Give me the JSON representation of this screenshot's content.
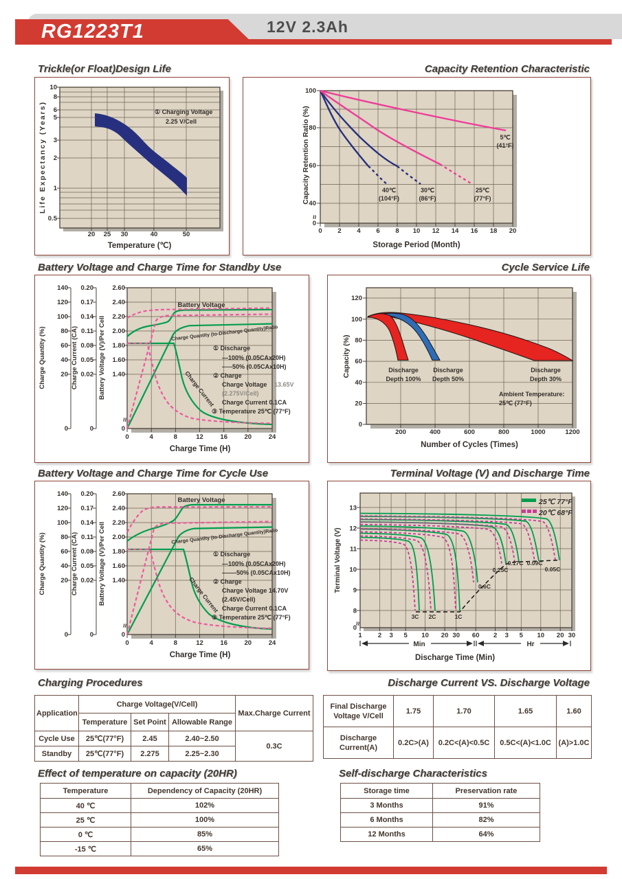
{
  "header": {
    "model": "RG1223T1",
    "rating": "12V  2.3Ah"
  },
  "colors": {
    "accent_red": "#d23b31",
    "header_gray": "#d8d8d8",
    "plot_background": "#ded5c4",
    "navy": "#27307f",
    "pink": "#ee3d98",
    "green": "#009d4e",
    "pink_dashed": "#f0579e",
    "red_fill": "#e62420",
    "blue_fill": "#2f6cb5",
    "magenta": "#c93b95",
    "box_border": "#8d4436"
  },
  "chart_data": [
    {
      "id": "trickle-design-life",
      "type": "area",
      "title": "Trickle(or Float)Design Life",
      "xlabel": "Temperature (℃)",
      "ylabel": "Life Expectancy (Years)",
      "y_scale": "log",
      "x_ticks": [
        "20",
        "25",
        "30",
        "40",
        "50"
      ],
      "y_ticks": [
        "10",
        "8",
        "6",
        "5",
        "3",
        "2",
        "1",
        "0.5"
      ],
      "annotation": [
        "① Charging Voltage",
        "2.25 V/Cell"
      ],
      "band": {
        "temperature_c": [
          21,
          25,
          30,
          35,
          40,
          45,
          50
        ],
        "years_upper": [
          5.5,
          5.1,
          4.1,
          3.0,
          2.2,
          1.6,
          1.25
        ],
        "years_lower": [
          4.0,
          3.8,
          3.0,
          2.15,
          1.55,
          1.1,
          0.85
        ]
      }
    },
    {
      "id": "capacity-retention",
      "type": "line",
      "title": "Capacity Retention  Characteristic",
      "xlabel": "Storage Period (Month)",
      "ylabel": "Capacity Retention Ratio (%)",
      "x_ticks": [
        "0",
        "2",
        "4",
        "6",
        "8",
        "10",
        "12",
        "14",
        "16",
        "18",
        "20"
      ],
      "y_ticks": [
        "100",
        "80",
        "60",
        "40",
        "0"
      ],
      "series": [
        {
          "name": "40℃ (104°F)",
          "label": [
            "40℃",
            "(104°F)"
          ],
          "color": "#27307f",
          "months": [
            0,
            1,
            2,
            3,
            4,
            5,
            6.9
          ],
          "retention_pct": [
            100,
            88,
            79.5,
            72,
            65,
            59.5,
            50
          ],
          "dashed_after_month": 5
        },
        {
          "name": "30℃ (86°F)",
          "label": [
            "30℃",
            "(86°F)"
          ],
          "color": "#27307f",
          "months": [
            0,
            2,
            4,
            6,
            8,
            10.4
          ],
          "retention_pct": [
            100,
            87,
            75.5,
            66.5,
            59.5,
            50
          ],
          "dashed_after_month": 8
        },
        {
          "name": "25℃ (77°F)",
          "label": [
            "25℃",
            "(77°F)"
          ],
          "color": "#ee3d98",
          "months": [
            0,
            3,
            6,
            9,
            12.4,
            15.8
          ],
          "retention_pct": [
            100,
            89,
            79,
            70,
            60.5,
            50
          ],
          "dashed_after_month": 12.4
        },
        {
          "name": "5℃ (41°F)",
          "label": [
            "5℃",
            "(41°F)"
          ],
          "color": "#ee3d98",
          "months": [
            0,
            5,
            10,
            15,
            19.3
          ],
          "retention_pct": [
            100,
            95,
            89,
            83,
            78.5
          ],
          "dashed_after_month": null
        }
      ]
    },
    {
      "id": "standby-charge",
      "type": "line",
      "title": "Battery Voltage and Charge Time for Standby Use",
      "xlabel": "Charge Time (H)",
      "x_ticks": [
        "0",
        "4",
        "8",
        "12",
        "16",
        "20",
        "24"
      ],
      "axes": [
        {
          "label": "Charge Quantity (%)",
          "ticks": [
            "140",
            "120",
            "100",
            "80",
            "60",
            "40",
            "20"
          ],
          "zero": "0"
        },
        {
          "label": "Charge Current (CA)",
          "ticks": [
            "0.20",
            "0.17",
            "0.14",
            "0.11",
            "0.08",
            "0.05",
            "0.02"
          ],
          "zero": "0"
        },
        {
          "label": "Battery Voltage (V)/Per Cell",
          "ticks": [
            "2.60",
            "2.40",
            "2.20",
            "2.00",
            "1.80",
            "1.60",
            "1.40"
          ],
          "zero": "0"
        }
      ],
      "curve_labels": {
        "battery_voltage": "Battery Voltage",
        "charge_quantity": "Charge Quantity (to-Discharge Quantity)Ratio",
        "charge_current": "Charge Current"
      },
      "annotation": [
        "① Discharge",
        "—100% (0.05CAx20H)",
        "-----50% (0.05CAx10H)",
        "② Charge",
        "Charge Voltage",
        "13.65V",
        "(2.275V/Cell)",
        "Charge Current 0.1CA",
        "③ Temperature 25℃ (77°F)"
      ],
      "series": [
        {
          "name": "Battery Voltage 100% discharge",
          "color": "#009d4e",
          "style": "solid",
          "time_h": [
            0,
            2,
            4,
            6,
            7.8,
            9,
            24
          ],
          "v_per_cell": [
            1.92,
            2.07,
            2.11,
            2.14,
            2.26,
            2.28,
            2.29
          ]
        },
        {
          "name": "Battery Voltage 50% discharge",
          "color": "#f0579e",
          "style": "dashed",
          "time_h": [
            0,
            1,
            2,
            4,
            24
          ],
          "v_per_cell": [
            2.17,
            2.22,
            2.25,
            2.27,
            2.3
          ]
        },
        {
          "name": "Charge Quantity 100% discharge",
          "color": "#009d4e",
          "style": "solid",
          "time_h": [
            0,
            4,
            8,
            12,
            24
          ],
          "charge_quantity_pct": [
            0,
            50,
            97,
            101,
            104
          ]
        },
        {
          "name": "Charge Quantity 50% discharge",
          "color": "#f0579e",
          "style": "dashed",
          "time_h": [
            0,
            2,
            4.8,
            10,
            24
          ],
          "charge_quantity_pct": [
            0,
            45,
            107,
            110,
            113
          ]
        },
        {
          "name": "Charge Current 100% discharge",
          "color": "#009d4e",
          "style": "solid",
          "time_h": [
            0,
            7.6,
            9,
            12,
            16,
            24
          ],
          "charge_current_ca": [
            0.1,
            0.1,
            0.06,
            0.03,
            0.012,
            0.004
          ]
        },
        {
          "name": "Charge Current 50% discharge",
          "color": "#f0579e",
          "style": "dashed",
          "time_h": [
            0,
            3.3,
            5,
            7,
            10,
            24
          ],
          "charge_current_ca": [
            0.1,
            0.1,
            0.04,
            0.018,
            0.006,
            0.002
          ]
        }
      ]
    },
    {
      "id": "cycle-service-life",
      "type": "area",
      "title": "Cycle Service Life",
      "xlabel": "Number of Cycles (Times)",
      "ylabel": "Capacity (%)",
      "x_ticks": [
        "200",
        "400",
        "600",
        "800",
        "1000",
        "1200"
      ],
      "y_ticks": [
        "120",
        "100",
        "80",
        "60",
        "40",
        "20",
        "0"
      ],
      "note": [
        "Ambient Temperature:",
        "25℃ (77°F)"
      ],
      "bands": [
        {
          "name": "Discharge Depth 100%",
          "label": [
            "Discharge",
            "Depth 100%"
          ],
          "color": "#e62420",
          "capacity_pct_start": 102,
          "capacity_pct_peak": 106,
          "end_cycles_range": [
            200,
            250
          ],
          "capacity_pct_end": 61
        },
        {
          "name": "Discharge Depth 50%",
          "label": [
            "Discharge",
            "Depth 50%"
          ],
          "color": "#2f6cb5",
          "capacity_pct_start": 102,
          "capacity_pct_peak": 106,
          "end_cycles_range": [
            390,
            470
          ],
          "capacity_pct_end": 61
        },
        {
          "name": "Discharge Depth 30%",
          "label": [
            "Discharge",
            "Depth 30%"
          ],
          "color": "#e62420",
          "capacity_pct_start": 102,
          "capacity_pct_peak": 106,
          "end_cycles_range": [
            980,
            1200
          ],
          "capacity_pct_end": 61
        }
      ]
    },
    {
      "id": "cycle-charge",
      "type": "line",
      "title": "Battery Voltage and Charge Time for Cycle Use",
      "xlabel": "Charge Time (H)",
      "x_ticks": [
        "0",
        "4",
        "8",
        "12",
        "16",
        "20",
        "24"
      ],
      "axes": [
        {
          "label": "Charge Quantity (%)",
          "ticks": [
            "140",
            "120",
            "100",
            "80",
            "60",
            "40",
            "20"
          ],
          "zero": "0"
        },
        {
          "label": "Charge Current (CA)",
          "ticks": [
            "0.20",
            "0.17",
            "0.14",
            "0.11",
            "0.08",
            "0.05",
            "0.02"
          ],
          "zero": "0"
        },
        {
          "label": "Battery Voltage (V)/Per Cell",
          "ticks": [
            "2.60",
            "2.40",
            "2.20",
            "2.00",
            "1.80",
            "1.60",
            "1.40"
          ],
          "zero": "0"
        }
      ],
      "curve_labels": {
        "battery_voltage": "Battery Voltage",
        "charge_quantity": "Charge Quantity (to-Discharge Quantity)Ratio",
        "charge_current": "Charge Current"
      },
      "annotation": [
        "① Discharge",
        "—100% (0.05CAx20H)",
        "——-50% (0.05CAx10H)",
        "② Charge",
        "Charge Voltage 14.70V",
        "(2.45V/Cell)",
        "Charge Current 0.1CA",
        "③ Temperature 25℃ (77°F)"
      ],
      "series": [
        {
          "name": "Battery Voltage 100% discharge",
          "color": "#009d4e",
          "style": "solid",
          "time_h": [
            0,
            4,
            6,
            8,
            9.3,
            24
          ],
          "v_per_cell": [
            1.94,
            2.1,
            2.18,
            2.3,
            2.44,
            2.45
          ]
        },
        {
          "name": "Battery Voltage 50% discharge",
          "color": "#f0579e",
          "style": "dashed",
          "time_h": [
            0,
            2,
            4,
            4.5,
            24
          ],
          "v_per_cell": [
            2.06,
            2.3,
            2.43,
            2.45,
            2.45
          ]
        },
        {
          "name": "Charge Quantity 100% discharge",
          "color": "#009d4e",
          "style": "solid",
          "time_h": [
            0,
            4,
            8.6,
            12,
            24
          ],
          "charge_quantity_pct": [
            0,
            47,
            100,
            103,
            106
          ]
        },
        {
          "name": "Charge Quantity 50% discharge",
          "color": "#f0579e",
          "style": "dashed",
          "time_h": [
            0,
            2,
            4.5,
            10,
            24
          ],
          "charge_quantity_pct": [
            0,
            47,
            105,
            109,
            112
          ]
        },
        {
          "name": "Charge Current 100% discharge",
          "color": "#009d4e",
          "style": "solid",
          "time_h": [
            0,
            9.4,
            11,
            14,
            18,
            24
          ],
          "charge_current_ca": [
            0.1,
            0.1,
            0.055,
            0.025,
            0.01,
            0.004
          ]
        },
        {
          "name": "Charge Current 50% discharge",
          "color": "#f0579e",
          "style": "dashed",
          "time_h": [
            0,
            4.4,
            6,
            8,
            11,
            24
          ],
          "charge_current_ca": [
            0.1,
            0.1,
            0.04,
            0.016,
            0.005,
            0.002
          ]
        }
      ]
    },
    {
      "id": "terminal-voltage-discharge-time",
      "type": "line",
      "title": "Terminal Voltage (V) and Discharge Time",
      "xlabel": "Discharge Time (Min)",
      "ylabel": "Terminal Voltage (V)",
      "x_scale": "log",
      "y_ticks": [
        "13",
        "12",
        "11",
        "10",
        "9",
        "8"
      ],
      "y_zero": "0",
      "x_ticks_min": [
        "1",
        "2",
        "3",
        "5",
        "10",
        "20",
        "30",
        "60"
      ],
      "x_ticks_hr": [
        "2",
        "3",
        "5",
        "10",
        "20",
        "30"
      ],
      "x_unit_min": "Min",
      "x_unit_hr": "Hr",
      "legend": [
        {
          "label": "25℃ 77°F",
          "color": "#009d4e",
          "style": "solid"
        },
        {
          "label": "20℃ 68°F",
          "color": "#c93b95",
          "style": "dashed"
        }
      ],
      "rate_labels": [
        "3C",
        "2C",
        "1C",
        "0.6C",
        "0.25C",
        "0.17C",
        "0.09C",
        "0.05C"
      ],
      "curves": [
        {
          "rate": "3C",
          "plateau_v_25c": 11.55,
          "end_min": 9,
          "end_v": 8.0
        },
        {
          "rate": "2C",
          "plateau_v_25c": 11.75,
          "end_min": 14.5,
          "end_v": 8.0
        },
        {
          "rate": "1C",
          "plateau_v_25c": 11.95,
          "end_min": 34,
          "end_v": 8.0
        },
        {
          "rate": "0.6C",
          "plateau_v_25c": 12.1,
          "end_min": 64,
          "end_v": 9.4
        },
        {
          "rate": "0.25C",
          "plateau_v_25c": 12.3,
          "end_min": 175,
          "end_v": 10.3
        },
        {
          "rate": "0.17C",
          "plateau_v_25c": 12.4,
          "end_min": 280,
          "end_v": 10.35
        },
        {
          "rate": "0.09C",
          "plateau_v_25c": 12.55,
          "end_min": 560,
          "end_v": 10.4
        },
        {
          "rate": "0.05C",
          "plateau_v_25c": 12.7,
          "end_min": 1150,
          "end_v": 10.45
        }
      ]
    }
  ],
  "tables": {
    "charging": {
      "title": "Charging Procedures",
      "col_application": "Application",
      "col_charge_voltage": "Charge Voltage(V/Cell)",
      "col_temperature": "Temperature",
      "col_set_point": "Set Point",
      "col_allowable": "Allowable Range",
      "col_max_current": "Max.Charge Current",
      "rows": [
        {
          "application": "Cycle Use",
          "temperature": "25℃(77°F)",
          "set_point": "2.45",
          "range": "2.40~2.50"
        },
        {
          "application": "Standby",
          "temperature": "25℃(77°F)",
          "set_point": "2.275",
          "range": "2.25~2.30"
        }
      ],
      "max_current": "0.3C"
    },
    "discharge": {
      "title": "Discharge Current VS. Discharge Voltage",
      "row1_label": [
        "Final Discharge",
        "Voltage V/Cell"
      ],
      "row2_label": [
        "Discharge",
        "Current(A)"
      ],
      "voltages": [
        "1.75",
        "1.70",
        "1.65",
        "1.60"
      ],
      "currents": [
        "0.2C>(A)",
        "0.2C<(A)<0.5C",
        "0.5C<(A)<1.0C",
        "(A)>1.0C"
      ]
    },
    "temp_capacity": {
      "title": "Effect of temperature on capacity (20HR)",
      "headers": [
        "Temperature",
        "Dependency of Capacity (20HR)"
      ],
      "rows": [
        [
          "40 ℃",
          "102%"
        ],
        [
          "25 ℃",
          "100%"
        ],
        [
          "0 ℃",
          "85%"
        ],
        [
          "-15 ℃",
          "65%"
        ]
      ]
    },
    "self_discharge": {
      "title": "Self-discharge Characteristics",
      "headers": [
        "Storage time",
        "Preservation rate"
      ],
      "rows": [
        [
          "3 Months",
          "91%"
        ],
        [
          "6 Months",
          "82%"
        ],
        [
          "12 Months",
          "64%"
        ]
      ]
    }
  }
}
